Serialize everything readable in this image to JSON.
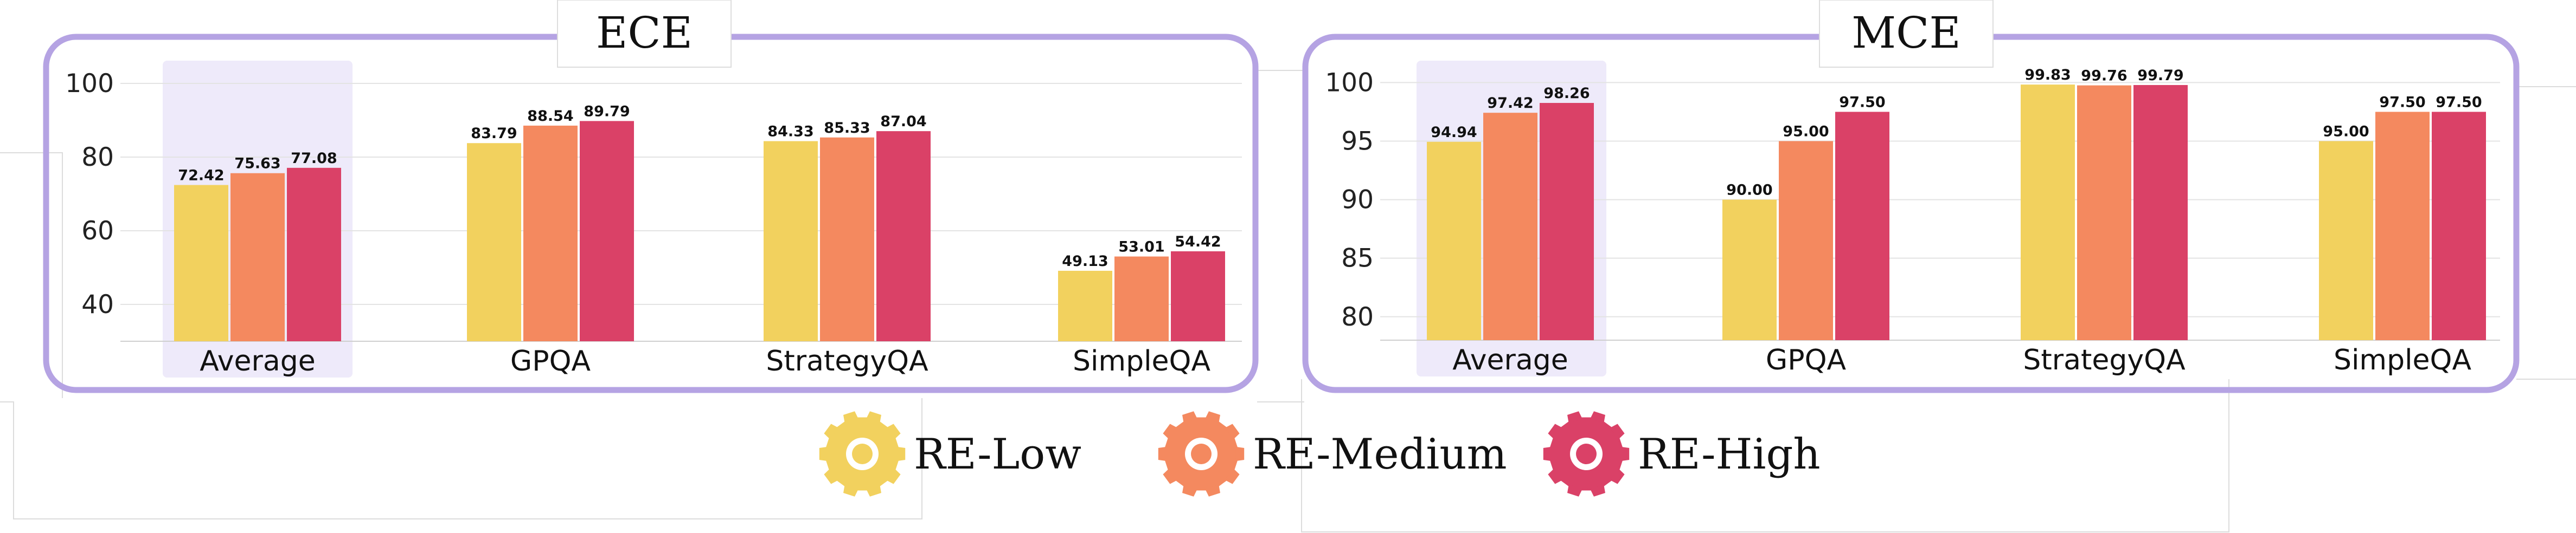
{
  "chart_data": [
    {
      "type": "bar",
      "title": "ECE",
      "categories": [
        "Average",
        "GPQA",
        "StrategyQA",
        "SimpleQA"
      ],
      "series": [
        {
          "name": "RE-Low",
          "values": [
            72.42,
            83.79,
            84.33,
            49.13
          ]
        },
        {
          "name": "RE-Medium",
          "values": [
            75.63,
            88.54,
            85.33,
            53.01
          ]
        },
        {
          "name": "RE-High",
          "values": [
            77.08,
            89.79,
            87.04,
            54.42
          ]
        }
      ],
      "value_labels": [
        [
          "72.42",
          "83.79",
          "84.33",
          "49.13"
        ],
        [
          "75.63",
          "88.54",
          "85.33",
          "53.01"
        ],
        [
          "77.08",
          "89.79",
          "87.04",
          "54.42"
        ]
      ],
      "ylim": [
        30,
        105
      ],
      "yticks": [
        "40",
        "60",
        "80",
        "100"
      ],
      "ytick_values": [
        40,
        60,
        80,
        100
      ],
      "highlighted_category": "Average",
      "grid": true
    },
    {
      "type": "bar",
      "title": "MCE",
      "categories": [
        "Average",
        "GPQA",
        "StrategyQA",
        "SimpleQA"
      ],
      "series": [
        {
          "name": "RE-Low",
          "values": [
            94.94,
            90.0,
            99.83,
            95.0
          ]
        },
        {
          "name": "RE-Medium",
          "values": [
            97.42,
            95.0,
            99.76,
            97.5
          ]
        },
        {
          "name": "RE-High",
          "values": [
            98.26,
            97.5,
            99.79,
            97.5
          ]
        }
      ],
      "value_labels": [
        [
          "94.94",
          "90.00",
          "99.83",
          "95.00"
        ],
        [
          "97.42",
          "95.00",
          "99.76",
          "97.50"
        ],
        [
          "98.26",
          "97.50",
          "99.79",
          "97.50"
        ]
      ],
      "ylim": [
        78,
        101.5
      ],
      "yticks": [
        "80",
        "85",
        "90",
        "95",
        "100"
      ],
      "ytick_values": [
        80,
        85,
        90,
        95,
        100
      ],
      "highlighted_category": "Average",
      "grid": true
    }
  ],
  "legend": {
    "placement": "bottom-center",
    "items": [
      {
        "label": "RE-Low",
        "color": "#F2D15E",
        "icon": "gear-icon"
      },
      {
        "label": "RE-Medium",
        "color": "#F4895F",
        "icon": "gear-icon"
      },
      {
        "label": "RE-High",
        "color": "#DA4167",
        "icon": "gear-icon"
      }
    ]
  },
  "colors": {
    "panel_border": "#B5A3E3",
    "highlight_band": "#EEEAFA",
    "grid": "#E3E3E3"
  }
}
